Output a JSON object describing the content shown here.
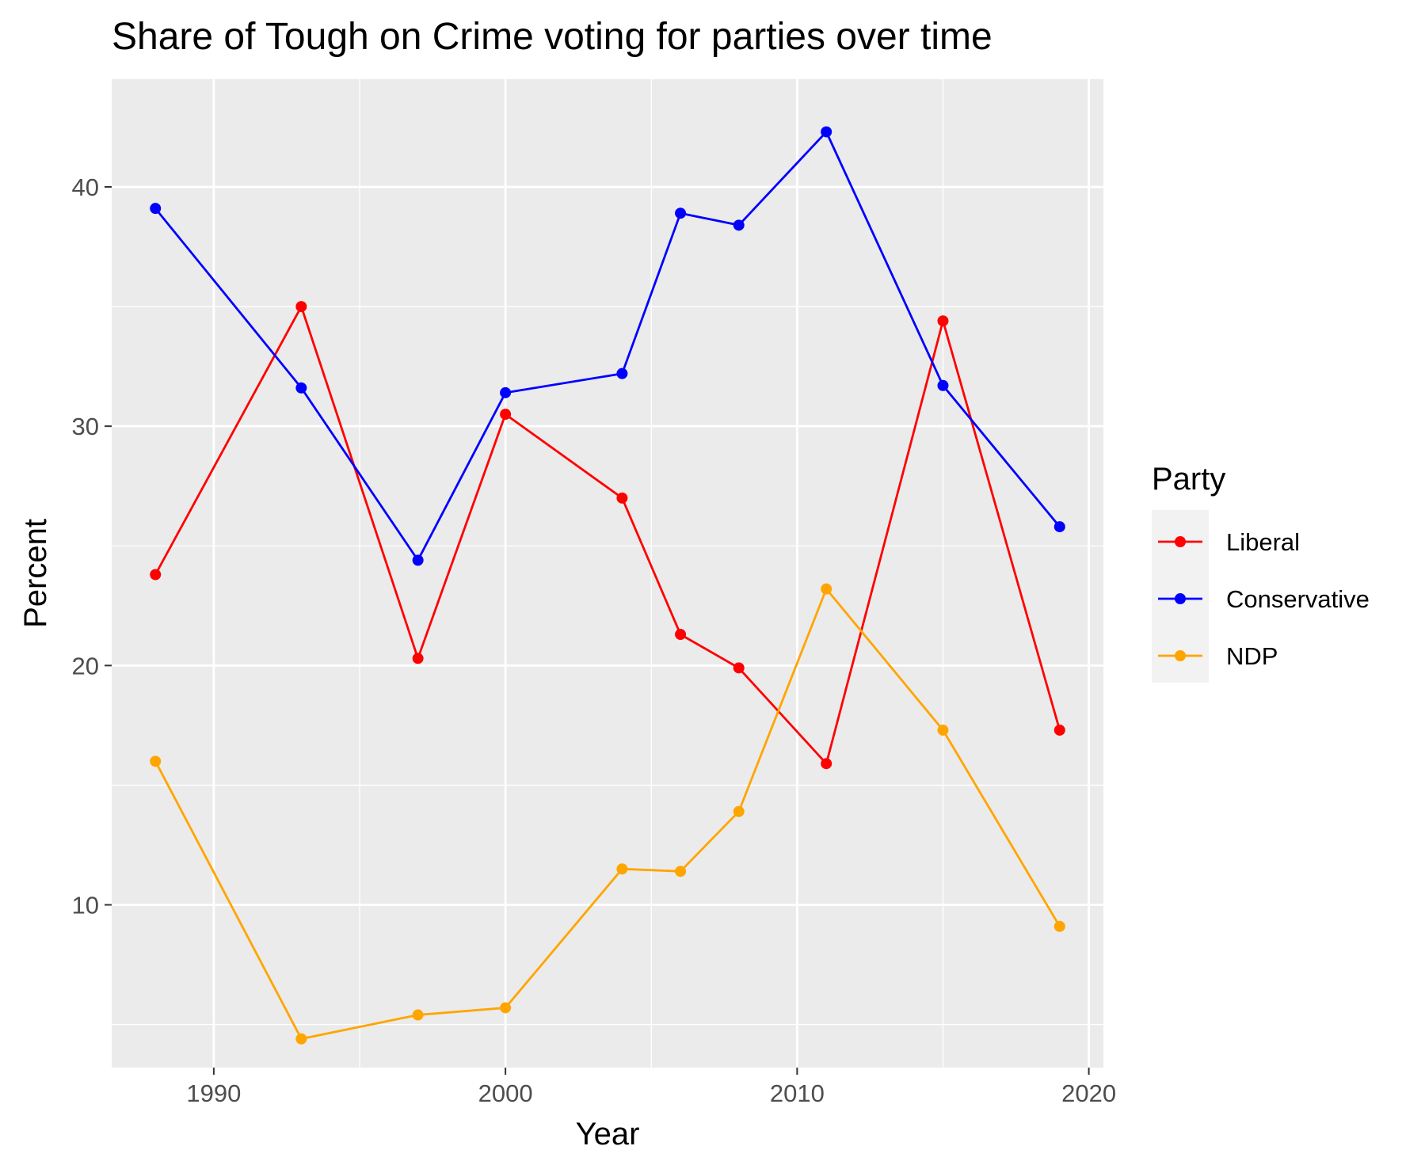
{
  "chart_data": {
    "type": "line",
    "title": "Share of Tough on Crime voting for parties over time",
    "xlabel": "Year",
    "ylabel": "Percent",
    "xlim": [
      1986.5,
      2020.5
    ],
    "ylim": [
      3.2,
      44.5
    ],
    "x_ticks": [
      1990,
      2000,
      2010,
      2020
    ],
    "y_ticks": [
      10,
      20,
      30,
      40
    ],
    "grid": true,
    "legend": {
      "title": "Party",
      "position": "right"
    },
    "x": [
      1988,
      1993,
      1997,
      2000,
      2004,
      2006,
      2008,
      2011,
      2015,
      2019
    ],
    "series": [
      {
        "name": "Liberal",
        "color": "#ff0000",
        "values": [
          23.8,
          35.0,
          20.3,
          30.5,
          27.0,
          21.3,
          19.9,
          15.9,
          34.4,
          17.3
        ]
      },
      {
        "name": "Conservative",
        "color": "#0000ff",
        "values": [
          39.1,
          31.6,
          24.4,
          31.4,
          32.2,
          38.9,
          38.4,
          42.3,
          31.7,
          25.8
        ]
      },
      {
        "name": "NDP",
        "color": "#ffa500",
        "values": [
          16.0,
          4.4,
          5.4,
          5.7,
          11.5,
          11.4,
          13.9,
          23.2,
          17.3,
          9.1
        ]
      }
    ]
  }
}
